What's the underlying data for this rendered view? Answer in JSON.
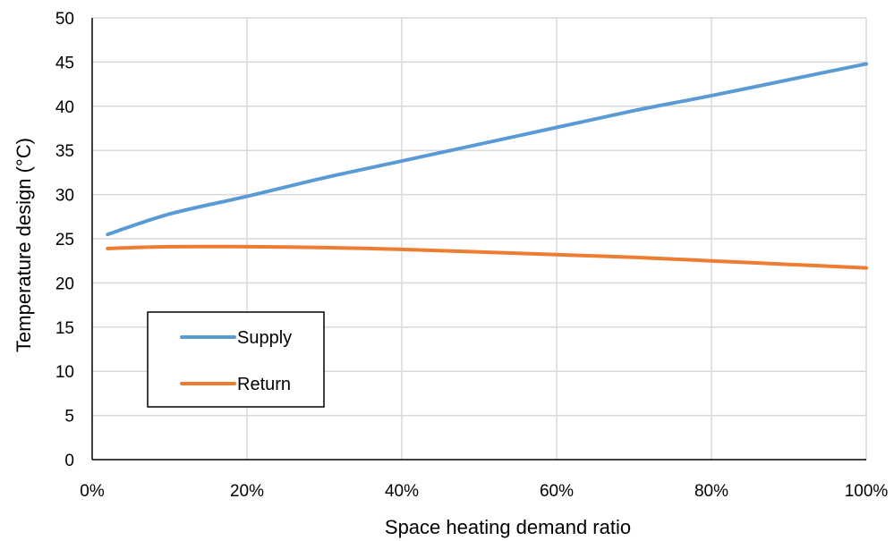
{
  "chart_data": {
    "type": "line",
    "xlabel": "Space heating demand ratio",
    "ylabel": "Temperature design (°C)",
    "xlim": [
      0,
      100
    ],
    "ylim": [
      0,
      50
    ],
    "x_ticks": [
      0,
      20,
      40,
      60,
      80,
      100
    ],
    "x_tick_labels": [
      "0%",
      "20%",
      "40%",
      "60%",
      "80%",
      "100%"
    ],
    "y_ticks": [
      0,
      5,
      10,
      15,
      20,
      25,
      30,
      35,
      40,
      45,
      50
    ],
    "y_tick_labels": [
      "0",
      "5",
      "10",
      "15",
      "20",
      "25",
      "30",
      "35",
      "40",
      "45",
      "50"
    ],
    "grid": true,
    "legend": {
      "position": "lower-left (inside plot)"
    },
    "series": [
      {
        "name": "Supply",
        "color": "#5b9bd5",
        "x": [
          2,
          10,
          20,
          30,
          40,
          50,
          60,
          70,
          80,
          90,
          100
        ],
        "y": [
          25.5,
          27.8,
          29.8,
          31.9,
          33.8,
          35.7,
          37.6,
          39.5,
          41.2,
          43.0,
          44.8
        ]
      },
      {
        "name": "Return",
        "color": "#ed7d31",
        "x": [
          2,
          10,
          20,
          30,
          40,
          50,
          60,
          70,
          80,
          90,
          100
        ],
        "y": [
          23.9,
          24.1,
          24.1,
          24.0,
          23.8,
          23.5,
          23.2,
          22.9,
          22.5,
          22.1,
          21.7
        ]
      }
    ]
  }
}
